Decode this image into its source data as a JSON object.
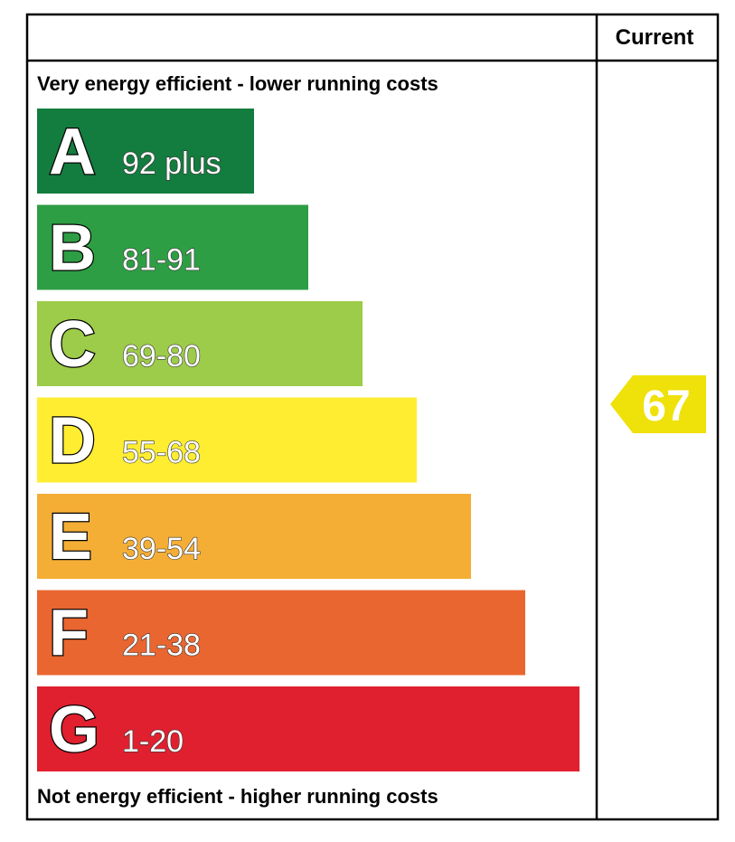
{
  "header": {
    "current": "Current"
  },
  "top_label": "Very energy efficient - lower running costs",
  "bottom_label": "Not energy efficient - higher running costs",
  "bands": [
    {
      "letter": "A",
      "range": "92 plus",
      "color": "#137c3f"
    },
    {
      "letter": "B",
      "range": "81-91",
      "color": "#2e9e44"
    },
    {
      "letter": "C",
      "range": "69-80",
      "color": "#9dcb4a"
    },
    {
      "letter": "D",
      "range": "55-68",
      "color": "#feed31"
    },
    {
      "letter": "E",
      "range": "39-54",
      "color": "#f5ae35"
    },
    {
      "letter": "F",
      "range": "21-38",
      "color": "#e96630"
    },
    {
      "letter": "G",
      "range": "1-20",
      "color": "#e0202f"
    }
  ],
  "current": {
    "value": 67,
    "color": "#efe10a"
  }
}
